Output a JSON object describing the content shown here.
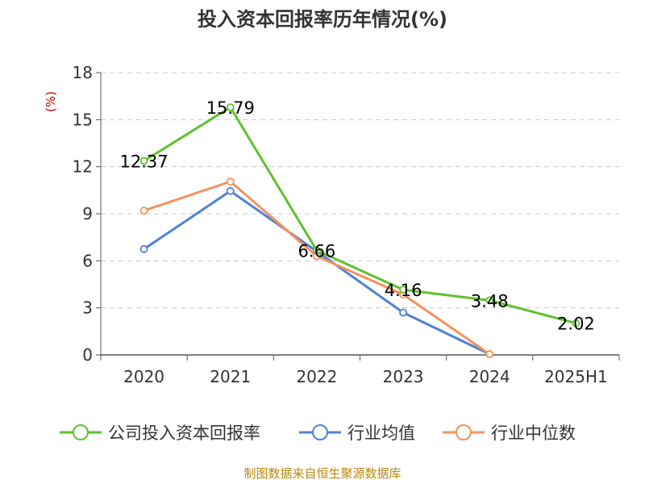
{
  "chart_data": {
    "type": "line",
    "title": "投入资本回报率历年情况(%)",
    "ylabel": "(%)",
    "xlabel": "",
    "ylim": [
      0,
      18
    ],
    "yticks": [
      0,
      3,
      6,
      9,
      12,
      15,
      18
    ],
    "grid": true,
    "legend_position": "bottom",
    "categories": [
      "2020",
      "2021",
      "2022",
      "2023",
      "2024",
      "2025H1"
    ],
    "series": [
      {
        "name": "公司投入资本回报率",
        "color": "#5ec12e",
        "values": [
          12.37,
          15.79,
          6.66,
          4.16,
          3.48,
          2.02
        ],
        "labels": [
          "12.37",
          "15.79",
          "6.66",
          "4.16",
          "3.48",
          "2.02"
        ]
      },
      {
        "name": "行业均值",
        "color": "#4f81d6",
        "values": [
          6.75,
          10.45,
          6.6,
          2.7,
          0.05,
          null
        ]
      },
      {
        "name": "行业中位数",
        "color": "#f5925a",
        "values": [
          9.2,
          11.05,
          6.3,
          3.85,
          0.05,
          null
        ]
      }
    ]
  },
  "source": "制图数据来自恒生聚源数据库"
}
